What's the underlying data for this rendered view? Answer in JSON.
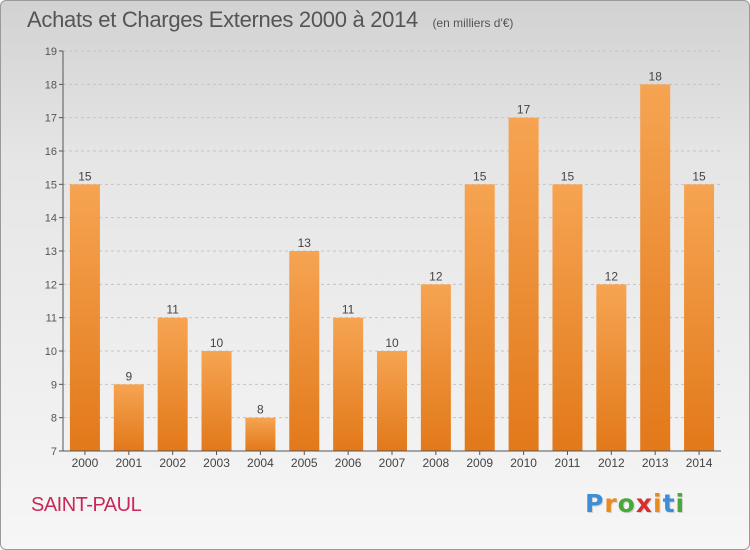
{
  "header": {
    "title": "Achats et Charges Externes 2000 à 2014",
    "subtitle": "(en milliers d'€)"
  },
  "footer": {
    "commune": "SAINT-PAUL",
    "logo_text": "Proxiti"
  },
  "colors": {
    "bar_top": "#f6a452",
    "bar_bottom": "#e2791a",
    "commune": "#c8295a",
    "logo_letters": [
      "#3c8fd6",
      "#e98a1f",
      "#49a83a",
      "#d4302f",
      "#e98a1f",
      "#3c8fd6",
      "#49a83a"
    ]
  },
  "chart_data": {
    "type": "bar",
    "categories": [
      "2000",
      "2001",
      "2002",
      "2003",
      "2004",
      "2005",
      "2006",
      "2007",
      "2008",
      "2009",
      "2010",
      "2011",
      "2012",
      "2013",
      "2014"
    ],
    "values": [
      15,
      9,
      11,
      10,
      8,
      13,
      11,
      10,
      12,
      15,
      17,
      15,
      12,
      18,
      15
    ],
    "data_labels": [
      "15",
      "9",
      "11",
      "10",
      "8",
      "13",
      "11",
      "10",
      "12",
      "15",
      "17",
      "15",
      "12",
      "18",
      "15"
    ],
    "ylim": [
      7,
      19
    ],
    "yticks": [
      7,
      8,
      9,
      10,
      11,
      12,
      13,
      14,
      15,
      16,
      17,
      18,
      19
    ],
    "grid": "horizontal-dashed",
    "legend": "none"
  }
}
